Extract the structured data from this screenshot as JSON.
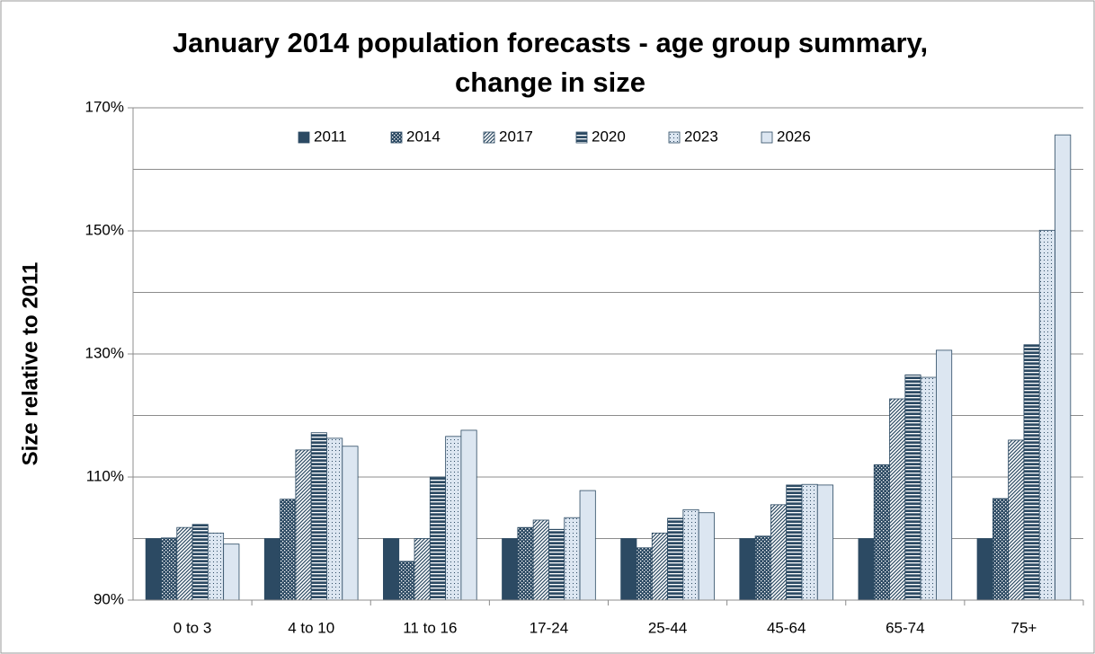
{
  "chart_data": {
    "type": "bar",
    "title": [
      "January 2014 population forecasts - age group summary,",
      "change in size"
    ],
    "y_label": "Size relative to 2011",
    "categories": [
      "0 to 3",
      "4 to 10",
      "11 to 16",
      "17-24",
      "25-44",
      "45-64",
      "65-74",
      "75+"
    ],
    "series": [
      {
        "name": "2011",
        "color": "#2c4a63",
        "pattern": "solid",
        "values": [
          100,
          100,
          100,
          100,
          100,
          100,
          100,
          100
        ]
      },
      {
        "name": "2014",
        "color": "#2c4a63",
        "pattern": "checker",
        "values": [
          100.1,
          106.4,
          96.3,
          101.8,
          98.5,
          100.4,
          112.0,
          106.5
        ]
      },
      {
        "name": "2017",
        "color": "#ffffff",
        "pattern": "diagonal",
        "values": [
          101.8,
          114.4,
          100.0,
          103.0,
          100.9,
          105.5,
          122.7,
          116.0
        ]
      },
      {
        "name": "2020",
        "color": "#2c4a63",
        "pattern": "horizontal",
        "values": [
          102.3,
          117.2,
          110.0,
          101.5,
          103.3,
          108.7,
          126.6,
          131.5
        ]
      },
      {
        "name": "2023",
        "color": "#dce6f1",
        "pattern": "dots",
        "values": [
          100.9,
          116.3,
          116.6,
          103.4,
          104.7,
          108.8,
          126.2,
          150.1
        ]
      },
      {
        "name": "2026",
        "color": "#dce6f1",
        "pattern": "solid",
        "values": [
          99.1,
          115.0,
          117.6,
          107.8,
          104.2,
          108.7,
          130.6,
          165.6
        ]
      }
    ],
    "ylim": [
      90,
      170
    ],
    "yticks": [
      {
        "value": 90,
        "label": "90%"
      },
      {
        "value": 110,
        "label": "110%"
      },
      {
        "value": 130,
        "label": "130%"
      },
      {
        "value": 150,
        "label": "150%"
      },
      {
        "value": 170,
        "label": "170%"
      }
    ],
    "minor_yticks": [
      100,
      120,
      140,
      160
    ],
    "grid": true,
    "legend": "top"
  }
}
